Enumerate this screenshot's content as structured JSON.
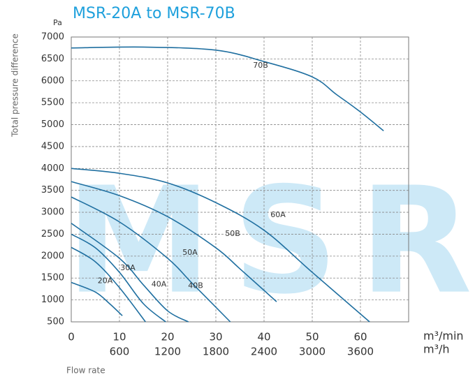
{
  "chart_data": {
    "type": "line",
    "title": "MSR-20A  to  MSR-70B",
    "watermark": "MSR",
    "y_unit": "Pa",
    "y_label": "Total pressure difference",
    "x_label": "Flow rate",
    "x_unit": "m³/min",
    "x2_unit": "m³/h",
    "xlim": [
      0,
      70
    ],
    "ylim": [
      500,
      7000
    ],
    "xticks": [
      0,
      10,
      20,
      30,
      40,
      50,
      60
    ],
    "x2ticks": [
      {
        "value": 10,
        "label": "600"
      },
      {
        "value": 20,
        "label": "1200"
      },
      {
        "value": 30,
        "label": "1800"
      },
      {
        "value": 40,
        "label": "2400"
      },
      {
        "value": 50,
        "label": "3000"
      },
      {
        "value": 60,
        "label": "3600"
      }
    ],
    "yticks": [
      500,
      1000,
      1500,
      2000,
      2500,
      3000,
      3500,
      4000,
      4500,
      5000,
      5500,
      6000,
      6500,
      7000
    ],
    "grid": true,
    "series": [
      {
        "name": "70B",
        "color": "#1f6fa0",
        "x": [
          0,
          15,
          30,
          40,
          50,
          55,
          60,
          64.8
        ],
        "values": [
          6750,
          6770,
          6700,
          6440,
          6090,
          5690,
          5290,
          4860
        ]
      },
      {
        "name": "60A",
        "color": "#1f6fa0",
        "x": [
          0,
          10,
          20,
          30,
          40,
          50,
          61.9
        ],
        "values": [
          4000,
          3890,
          3670,
          3220,
          2590,
          1630,
          500
        ]
      },
      {
        "name": "50B",
        "color": "#1f6fa0",
        "x": [
          0,
          10,
          20,
          30,
          35,
          42.6
        ],
        "values": [
          3700,
          3380,
          2900,
          2190,
          1710,
          960
        ]
      },
      {
        "name": "50A",
        "color": "#1f6fa0",
        "x": [
          0,
          10,
          20,
          25,
          33
        ],
        "values": [
          3350,
          2780,
          1950,
          1390,
          500
        ]
      },
      {
        "name": "40B",
        "color": "#1f6fa0",
        "x": [
          0,
          10,
          15,
          20,
          24.3
        ],
        "values": [
          2750,
          1950,
          1340,
          750,
          500
        ]
      },
      {
        "name": "40A",
        "color": "#1f6fa0",
        "x": [
          0,
          5,
          10,
          15,
          19.6
        ],
        "values": [
          2500,
          2190,
          1630,
          910,
          500
        ]
      },
      {
        "name": "30A",
        "color": "#1f6fa0",
        "x": [
          0,
          5,
          10,
          15.4
        ],
        "values": [
          2200,
          1870,
          1280,
          500
        ]
      },
      {
        "name": "20A",
        "color": "#1f6fa0",
        "x": [
          0,
          5,
          8,
          10.6
        ],
        "values": [
          1400,
          1180,
          910,
          640
        ]
      }
    ]
  }
}
